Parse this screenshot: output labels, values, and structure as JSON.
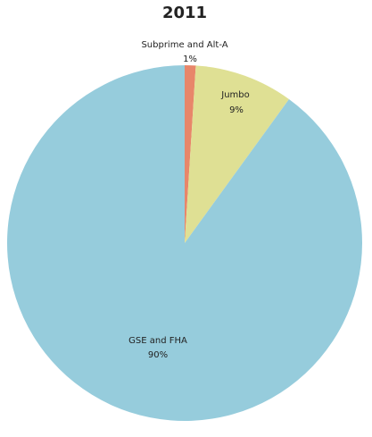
{
  "chart_data": {
    "type": "pie",
    "title": "2011",
    "categories": [
      "Subprime and Alt-A",
      "Jumbo",
      "GSE and FHA"
    ],
    "values": [
      1,
      9,
      90
    ],
    "value_labels": [
      "1%",
      "9%",
      "90%"
    ],
    "colors": [
      "#e8866a",
      "#dfe094",
      "#96ccdc"
    ]
  }
}
